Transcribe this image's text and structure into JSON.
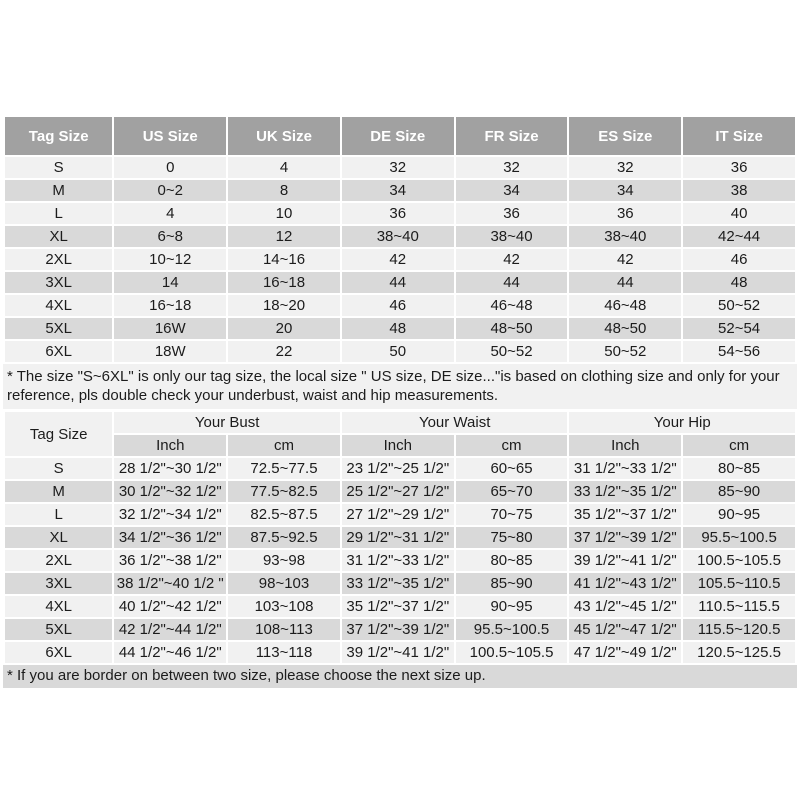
{
  "colors": {
    "header_bg": "#a1a1a1",
    "header_text": "#ffffff",
    "row_light": "#f1f1f1",
    "row_dark": "#d9d9d9",
    "note_light_bg": "#f1f1f1",
    "note_dark_bg": "#d9d9d9",
    "body_text": "#1c1c1c"
  },
  "size_conversion_table": {
    "columns": [
      "Tag Size",
      "US Size",
      "UK Size",
      "DE Size",
      "FR Size",
      "ES Size",
      "IT Size"
    ],
    "rows": [
      [
        "S",
        "0",
        "4",
        "32",
        "32",
        "32",
        "36"
      ],
      [
        "M",
        "0~2",
        "8",
        "34",
        "34",
        "34",
        "38"
      ],
      [
        "L",
        "4",
        "10",
        "36",
        "36",
        "36",
        "40"
      ],
      [
        "XL",
        "6~8",
        "12",
        "38~40",
        "38~40",
        "38~40",
        "42~44"
      ],
      [
        "2XL",
        "10~12",
        "14~16",
        "42",
        "42",
        "42",
        "46"
      ],
      [
        "3XL",
        "14",
        "16~18",
        "44",
        "44",
        "44",
        "48"
      ],
      [
        "4XL",
        "16~18",
        "18~20",
        "46",
        "46~48",
        "46~48",
        "50~52"
      ],
      [
        "5XL",
        "16W",
        "20",
        "48",
        "48~50",
        "48~50",
        "52~54"
      ],
      [
        "6XL",
        "18W",
        "22",
        "50",
        "50~52",
        "50~52",
        "54~56"
      ]
    ]
  },
  "note_between": "* The size \"S~6XL\" is only our tag size, the local size \" US size, DE size...\"is based on clothing size and only for your reference, pls double check your underbust, waist and hip measurements.",
  "measurement_table": {
    "corner_header": "Tag Size",
    "groups": [
      {
        "label": "Your Bust"
      },
      {
        "label": "Your Waist"
      },
      {
        "label": "Your Hip"
      }
    ],
    "sub_columns": [
      "Inch",
      "cm"
    ],
    "rows": [
      [
        "S",
        "28 1/2\"~30 1/2\"",
        "72.5~77.5",
        "23 1/2\"~25 1/2\"",
        "60~65",
        "31 1/2\"~33 1/2\"",
        "80~85"
      ],
      [
        "M",
        "30 1/2\"~32 1/2\"",
        "77.5~82.5",
        "25 1/2\"~27 1/2\"",
        "65~70",
        "33 1/2\"~35 1/2\"",
        "85~90"
      ],
      [
        "L",
        "32 1/2\"~34 1/2\"",
        "82.5~87.5",
        "27 1/2\"~29 1/2\"",
        "70~75",
        "35 1/2\"~37 1/2\"",
        "90~95"
      ],
      [
        "XL",
        "34 1/2\"~36 1/2\"",
        "87.5~92.5",
        "29 1/2\"~31 1/2\"",
        "75~80",
        "37 1/2\"~39 1/2\"",
        "95.5~100.5"
      ],
      [
        "2XL",
        "36 1/2\"~38 1/2\"",
        "93~98",
        "31 1/2\"~33 1/2\"",
        "80~85",
        "39 1/2\"~41 1/2\"",
        "100.5~105.5"
      ],
      [
        "3XL",
        "38 1/2\"~40 1/2 \"",
        "98~103",
        "33 1/2\"~35 1/2\"",
        "85~90",
        "41 1/2\"~43 1/2\"",
        "105.5~110.5"
      ],
      [
        "4XL",
        "40 1/2\"~42 1/2\"",
        "103~108",
        "35 1/2\"~37 1/2\"",
        "90~95",
        "43 1/2\"~45 1/2\"",
        "110.5~115.5"
      ],
      [
        "5XL",
        "42 1/2\"~44 1/2\"",
        "108~113",
        "37 1/2\"~39 1/2\"",
        "95.5~100.5",
        "45 1/2\"~47 1/2\"",
        "115.5~120.5"
      ],
      [
        "6XL",
        "44 1/2\"~46 1/2\"",
        "113~118",
        "39 1/2\"~41 1/2\"",
        "100.5~105.5",
        "47 1/2\"~49 1/2\"",
        "120.5~125.5"
      ]
    ]
  },
  "note_bottom": "* If you are border on between two size, please choose the next size up."
}
